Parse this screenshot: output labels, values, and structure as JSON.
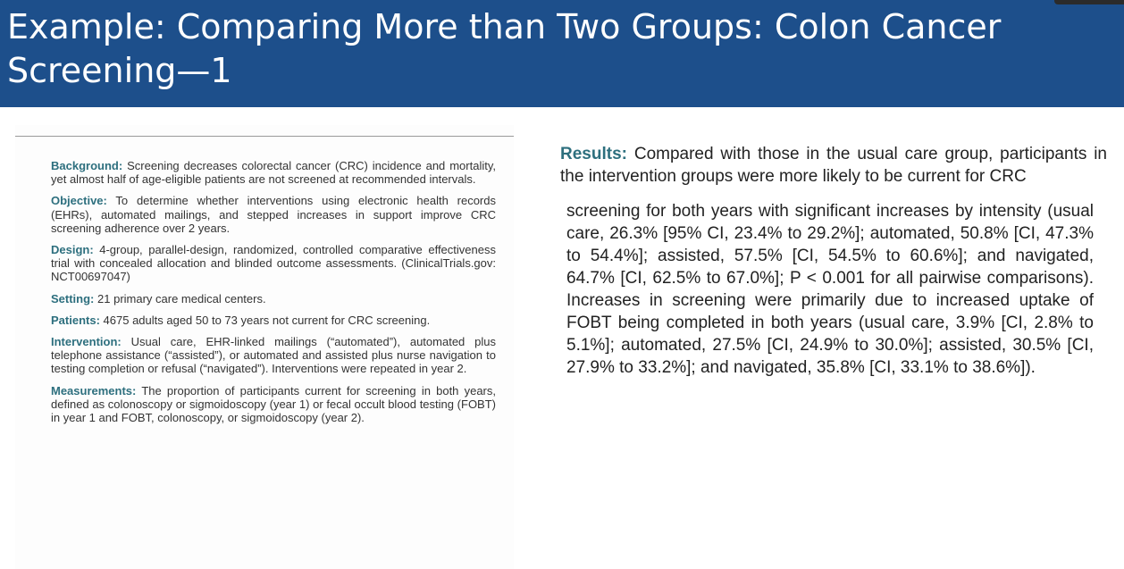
{
  "header": {
    "title": "Example: Comparing More than Two Groups: Colon Cancer Screening—1"
  },
  "abstract": {
    "sections": [
      {
        "heading": "Background:",
        "text": "Screening decreases colorectal cancer (CRC) incidence and mortality, yet almost half of age-eligible patients are not screened at recommended intervals."
      },
      {
        "heading": "Objective:",
        "text": "To determine whether interventions using electronic health records (EHRs), automated mailings, and stepped increases in support improve CRC screening adherence over 2 years."
      },
      {
        "heading": "Design:",
        "text": "4-group, parallel-design, randomized, controlled comparative effectiveness trial with concealed allocation and blinded outcome assessments. (ClinicalTrials.gov: NCT00697047)"
      },
      {
        "heading": "Setting:",
        "text": "21 primary care medical centers."
      },
      {
        "heading": "Patients:",
        "text": "4675 adults aged 50 to 73 years not current for CRC screening."
      },
      {
        "heading": "Intervention:",
        "text": "Usual care, EHR-linked mailings (“automated”), automated plus telephone assistance (“assisted”), or automated and assisted plus nurse navigation to testing completion or refusal (“navigated”). Interventions were repeated in year 2."
      },
      {
        "heading": "Measurements:",
        "text": "The proportion of participants current for screening in both years, defined as colonoscopy or sigmoidoscopy (year 1) or fecal occult blood testing (FOBT) in year 1 and FOBT, colonoscopy, or sigmoidoscopy (year 2)."
      }
    ]
  },
  "results": {
    "heading": "Results:",
    "text": "Compared with those in the usual care group, participants in the intervention groups were more likely to be current for CRC",
    "continuation": "screening for both years with significant increases by intensity (usual care, 26.3% [95% CI, 23.4% to 29.2%]; automated, 50.8% [CI, 47.3% to 54.4%]; assisted, 57.5% [CI, 54.5% to 60.6%]; and navigated, 64.7% [CI, 62.5% to 67.0%]; P < 0.001 for all pairwise comparisons). Increases in screening were primarily due to increased uptake of FOBT being completed in both years (usual care, 3.9% [CI, 2.8% to 5.1%]; automated, 27.5% [CI, 24.9% to 30.0%]; assisted, 30.5% [CI, 27.9% to 33.2%]; and navigated, 35.8% [CI, 33.1% to 38.6%])."
  }
}
